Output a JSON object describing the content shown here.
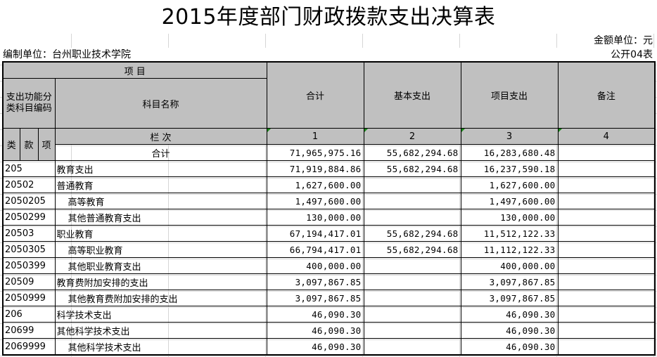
{
  "title": "2015年度部门财政拨款支出决算表",
  "unit_label": "金额单位：元",
  "org_label": "编制单位：台州职业技术学院",
  "table_id": "公开04表",
  "header": {
    "item": "项                    目",
    "func_code": "支出功能分类科目编码",
    "subject_name": "科目名称",
    "total": "合计",
    "basic": "基本支出",
    "project": "项目支出",
    "note": "备注",
    "lei": "类",
    "kuan": "款",
    "xiang": "项",
    "lanci": "栏                    次",
    "col1": "1",
    "col2": "2",
    "col3": "3",
    "col4": "4"
  },
  "total_row": {
    "label": "合计",
    "total": "71,965,975.16",
    "basic": "55,682,294.68",
    "project": "16,283,680.48",
    "note": ""
  },
  "rows": [
    {
      "code": "205",
      "name": "教育支出",
      "indent": false,
      "total": "71,919,884.86",
      "basic": "55,682,294.68",
      "project": "16,237,590.18",
      "note": ""
    },
    {
      "code": "20502",
      "name": "普通教育",
      "indent": false,
      "total": "1,627,600.00",
      "basic": "",
      "project": "1,627,600.00",
      "note": ""
    },
    {
      "code": "2050205",
      "name": "高等教育",
      "indent": true,
      "total": "1,497,600.00",
      "basic": "",
      "project": "1,497,600.00",
      "note": ""
    },
    {
      "code": "2050299",
      "name": "其他普通教育支出",
      "indent": true,
      "total": "130,000.00",
      "basic": "",
      "project": "130,000.00",
      "note": ""
    },
    {
      "code": "20503",
      "name": "职业教育",
      "indent": false,
      "total": "67,194,417.01",
      "basic": "55,682,294.68",
      "project": "11,512,122.33",
      "note": ""
    },
    {
      "code": "2050305",
      "name": "高等职业教育",
      "indent": true,
      "total": "66,794,417.01",
      "basic": "55,682,294.68",
      "project": "11,112,122.33",
      "note": ""
    },
    {
      "code": "2050399",
      "name": "其他职业教育支出",
      "indent": true,
      "total": "400,000.00",
      "basic": "",
      "project": "400,000.00",
      "note": ""
    },
    {
      "code": "20509",
      "name": "教育费附加安排的支出",
      "indent": false,
      "total": "3,097,867.85",
      "basic": "",
      "project": "3,097,867.85",
      "note": ""
    },
    {
      "code": "2050999",
      "name": "其他教育费附加安排的支出",
      "indent": true,
      "total": "3,097,867.85",
      "basic": "",
      "project": "3,097,867.85",
      "note": ""
    },
    {
      "code": "206",
      "name": "科学技术支出",
      "indent": false,
      "total": "46,090.30",
      "basic": "",
      "project": "46,090.30",
      "note": ""
    },
    {
      "code": "20699",
      "name": "其他科学技术支出",
      "indent": false,
      "total": "46,090.30",
      "basic": "",
      "project": "46,090.30",
      "note": ""
    },
    {
      "code": "2069999",
      "name": "其他科学技术支出",
      "indent": true,
      "total": "46,090.30",
      "basic": "",
      "project": "46,090.30",
      "note": ""
    }
  ]
}
